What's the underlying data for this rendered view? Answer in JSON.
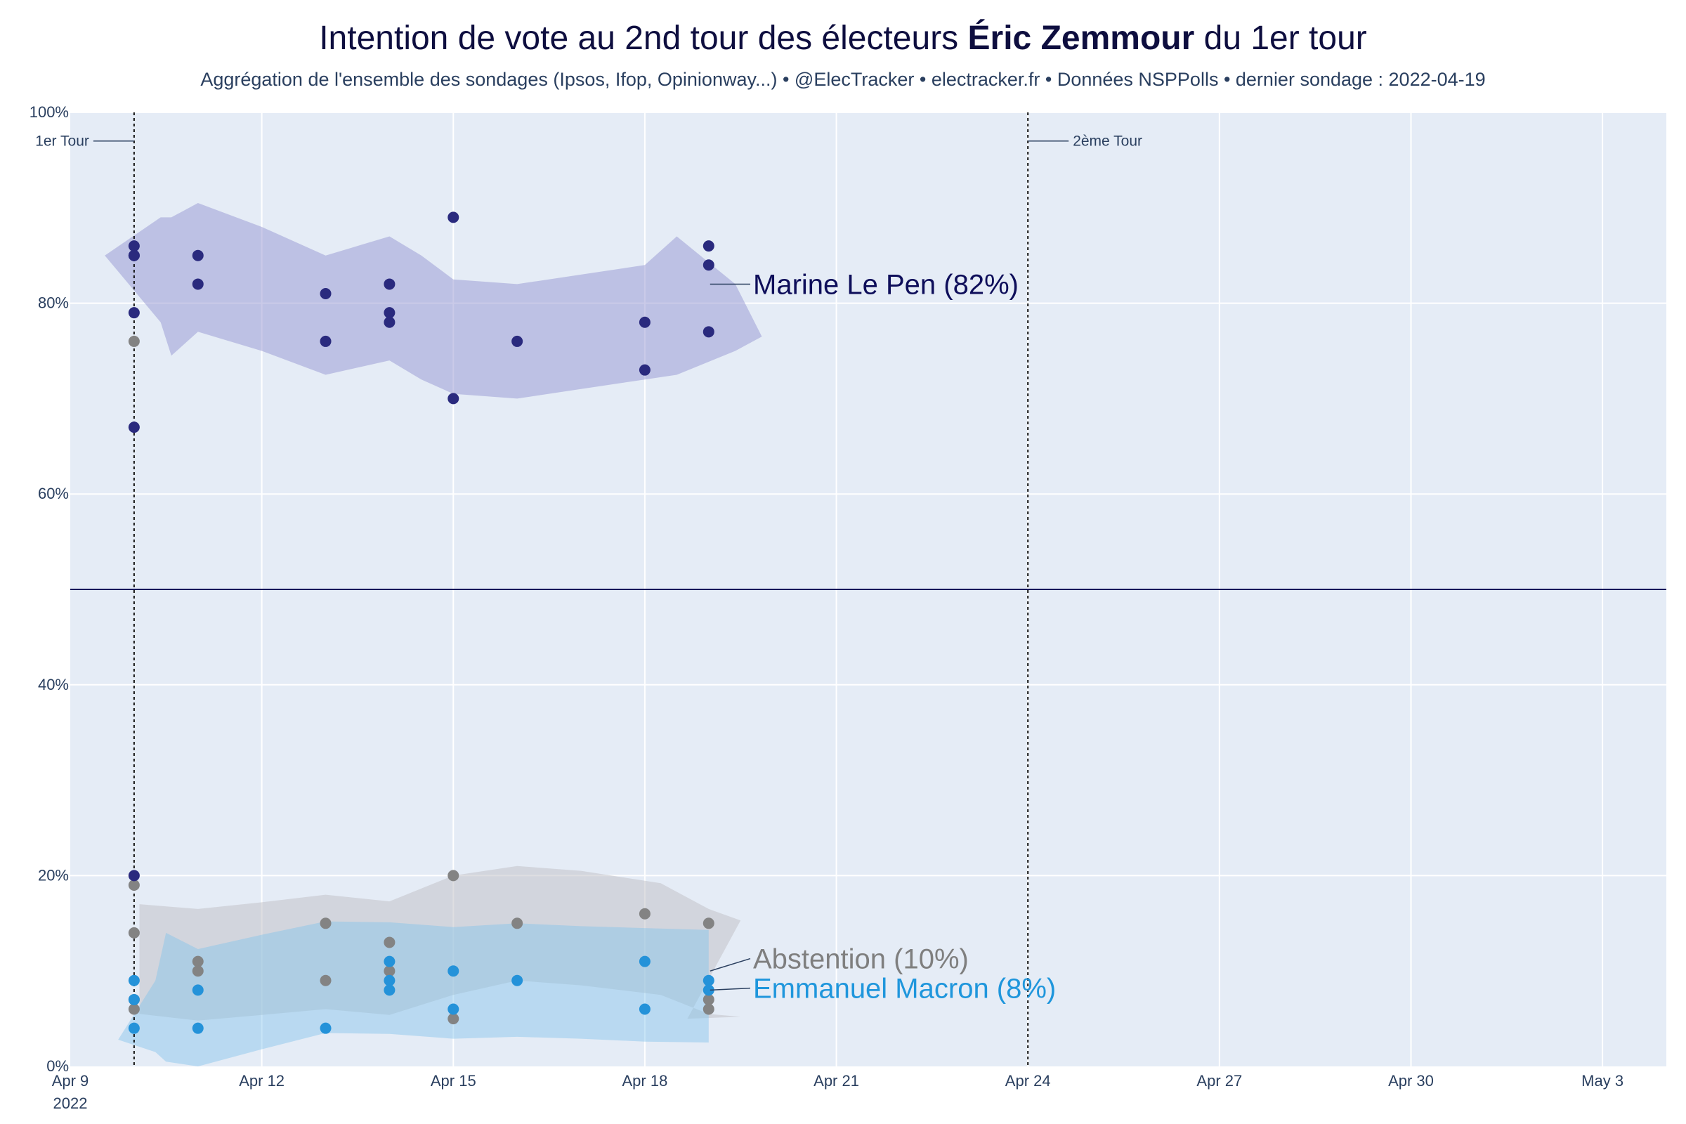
{
  "title": {
    "prefix": "Intention de vote au 2nd tour des électeurs ",
    "bold": "Éric Zemmour",
    "suffix": " du 1er tour"
  },
  "subtitle": "Aggrégation de l'ensemble des sondages (Ipsos, Ifop, Opinionway...) • @ElecTracker • electracker.fr • Données NSPPolls • dernier sondage : 2022-04-19",
  "chart_data": {
    "type": "scatter",
    "x_axis": {
      "range": [
        "2022-04-09",
        "2022-05-04"
      ],
      "ticks": [
        {
          "date": "2022-04-09",
          "label": "Apr 9",
          "sublabel": "2022"
        },
        {
          "date": "2022-04-12",
          "label": "Apr 12"
        },
        {
          "date": "2022-04-15",
          "label": "Apr 15"
        },
        {
          "date": "2022-04-18",
          "label": "Apr 18"
        },
        {
          "date": "2022-04-21",
          "label": "Apr 21"
        },
        {
          "date": "2022-04-24",
          "label": "Apr 24"
        },
        {
          "date": "2022-04-27",
          "label": "Apr 27"
        },
        {
          "date": "2022-04-30",
          "label": "Apr 30"
        },
        {
          "date": "2022-05-03",
          "label": "May 3"
        }
      ]
    },
    "y_axis": {
      "range": [
        0,
        100
      ],
      "ticks": [
        {
          "value": 0,
          "label": "0%"
        },
        {
          "value": 20,
          "label": "20%"
        },
        {
          "value": 40,
          "label": "40%"
        },
        {
          "value": 60,
          "label": "60%"
        },
        {
          "value": 80,
          "label": "80%"
        },
        {
          "value": 100,
          "label": "100%"
        }
      ]
    },
    "grid": true,
    "reference_line": {
      "y": 50,
      "color": "#0e0e5a"
    },
    "vlines": [
      {
        "date": "2022-04-10",
        "label": "1er Tour",
        "side": "left"
      },
      {
        "date": "2022-04-24",
        "label": "2ème Tour",
        "side": "right"
      }
    ],
    "series": [
      {
        "name": "Marine Le Pen",
        "label": "Marine Le Pen (82%)",
        "label_color": "#0e0e5a",
        "color": "#2a2a7e",
        "band_color": "rgba(150,150,210,0.50)",
        "band": [
          [
            "2022-04-09 13:00",
            85,
            85
          ],
          [
            "2022-04-10 10:00",
            89,
            78
          ],
          [
            "2022-04-10 14:00",
            89,
            74.5
          ],
          [
            "2022-04-11 00:00",
            90.5,
            77
          ],
          [
            "2022-04-12 00:00",
            88,
            75
          ],
          [
            "2022-04-13 00:00",
            85,
            72.5
          ],
          [
            "2022-04-14 00:00",
            87,
            74
          ],
          [
            "2022-04-14 12:00",
            85,
            72
          ],
          [
            "2022-04-15 00:00",
            82.5,
            70.5
          ],
          [
            "2022-04-16 00:00",
            82,
            70
          ],
          [
            "2022-04-17 00:00",
            83,
            71
          ],
          [
            "2022-04-18 00:00",
            84,
            72
          ],
          [
            "2022-04-18 12:00",
            87,
            72.5
          ],
          [
            "2022-04-19 10:00",
            82,
            75
          ],
          [
            "2022-04-19 20:00",
            76.5,
            76.5
          ]
        ],
        "points": [
          [
            "2022-04-10",
            86
          ],
          [
            "2022-04-10",
            85
          ],
          [
            "2022-04-10",
            85
          ],
          [
            "2022-04-10",
            79
          ],
          [
            "2022-04-10",
            67
          ],
          [
            "2022-04-10",
            20
          ],
          [
            "2022-04-11",
            85
          ],
          [
            "2022-04-11",
            82
          ],
          [
            "2022-04-13",
            81
          ],
          [
            "2022-04-13",
            76
          ],
          [
            "2022-04-14",
            82
          ],
          [
            "2022-04-14",
            79
          ],
          [
            "2022-04-14",
            78
          ],
          [
            "2022-04-15",
            89
          ],
          [
            "2022-04-15",
            70
          ],
          [
            "2022-04-16",
            76
          ],
          [
            "2022-04-18",
            78
          ],
          [
            "2022-04-18",
            73
          ],
          [
            "2022-04-19",
            86
          ],
          [
            "2022-04-19",
            84
          ],
          [
            "2022-04-19",
            77
          ]
        ]
      },
      {
        "name": "Abstention",
        "label": "Abstention (10%)",
        "label_color": "#7f7f7f",
        "color": "#838383",
        "band_color": "rgba(195,195,200,0.55)",
        "band": [
          [
            "2022-04-10 02:00",
            17,
            5.5
          ],
          [
            "2022-04-11 00:00",
            16.5,
            4.8
          ],
          [
            "2022-04-12 00:00",
            17.2,
            5.4
          ],
          [
            "2022-04-13 00:00",
            18,
            6
          ],
          [
            "2022-04-14 00:00",
            17.3,
            5.4
          ],
          [
            "2022-04-15 00:00",
            20,
            7.5
          ],
          [
            "2022-04-16 00:00",
            21,
            9
          ],
          [
            "2022-04-17 00:00",
            20.5,
            8.5
          ],
          [
            "2022-04-18 06:00",
            19.2,
            7.5
          ],
          [
            "2022-04-19 00:00",
            16.5,
            5.5
          ],
          [
            "2022-04-19 12:00",
            15.3,
            5.2
          ],
          [
            "2022-04-18 16:00",
            5,
            5
          ]
        ],
        "points": [
          [
            "2022-04-10",
            19
          ],
          [
            "2022-04-10",
            14
          ],
          [
            "2022-04-10",
            7
          ],
          [
            "2022-04-10",
            6
          ],
          [
            "2022-04-10",
            76
          ],
          [
            "2022-04-11",
            11
          ],
          [
            "2022-04-11",
            10
          ],
          [
            "2022-04-13",
            15
          ],
          [
            "2022-04-13",
            9
          ],
          [
            "2022-04-14",
            13
          ],
          [
            "2022-04-14",
            10
          ],
          [
            "2022-04-15",
            20
          ],
          [
            "2022-04-15",
            5
          ],
          [
            "2022-04-16",
            15
          ],
          [
            "2022-04-18",
            16
          ],
          [
            "2022-04-19",
            15
          ],
          [
            "2022-04-19",
            7
          ],
          [
            "2022-04-19",
            6
          ]
        ]
      },
      {
        "name": "Emmanuel Macron",
        "label": "Emmanuel Macron (8%)",
        "label_color": "#1f96dc",
        "color": "#2492d9",
        "band_color": "rgba(130,195,235,0.45)",
        "band": [
          [
            "2022-04-09 18:00",
            2.8,
            2.8
          ],
          [
            "2022-04-10 08:00",
            9,
            1.5
          ],
          [
            "2022-04-10 08:00",
            9,
            1.5
          ],
          [
            "2022-04-10 12:00",
            14,
            0.5
          ],
          [
            "2022-04-11 00:00",
            12.3,
            0
          ],
          [
            "2022-04-12 00:00",
            13.8,
            1.8
          ],
          [
            "2022-04-13 00:00",
            15.2,
            3.5
          ],
          [
            "2022-04-14 00:00",
            15.1,
            3.4
          ],
          [
            "2022-04-15 00:00",
            14.6,
            2.9
          ],
          [
            "2022-04-16 00:00",
            15,
            3.1
          ],
          [
            "2022-04-17 00:00",
            14.7,
            2.9
          ],
          [
            "2022-04-18 00:00",
            14.5,
            2.6
          ],
          [
            "2022-04-19 00:00",
            14.3,
            2.5
          ]
        ],
        "points": [
          [
            "2022-04-10",
            9
          ],
          [
            "2022-04-10",
            7
          ],
          [
            "2022-04-10",
            4
          ],
          [
            "2022-04-11",
            8
          ],
          [
            "2022-04-11",
            4
          ],
          [
            "2022-04-13",
            4
          ],
          [
            "2022-04-14",
            11
          ],
          [
            "2022-04-14",
            9
          ],
          [
            "2022-04-14",
            8
          ],
          [
            "2022-04-15",
            10
          ],
          [
            "2022-04-15",
            6
          ],
          [
            "2022-04-16",
            9
          ],
          [
            "2022-04-18",
            11
          ],
          [
            "2022-04-18",
            6
          ],
          [
            "2022-04-19",
            9
          ],
          [
            "2022-04-19",
            8
          ]
        ]
      }
    ],
    "colors": {
      "plot_bg": "#e5ecf6",
      "grid": "#ffffff",
      "text": "#2a3f5f",
      "title": "#0e0e3f"
    }
  }
}
